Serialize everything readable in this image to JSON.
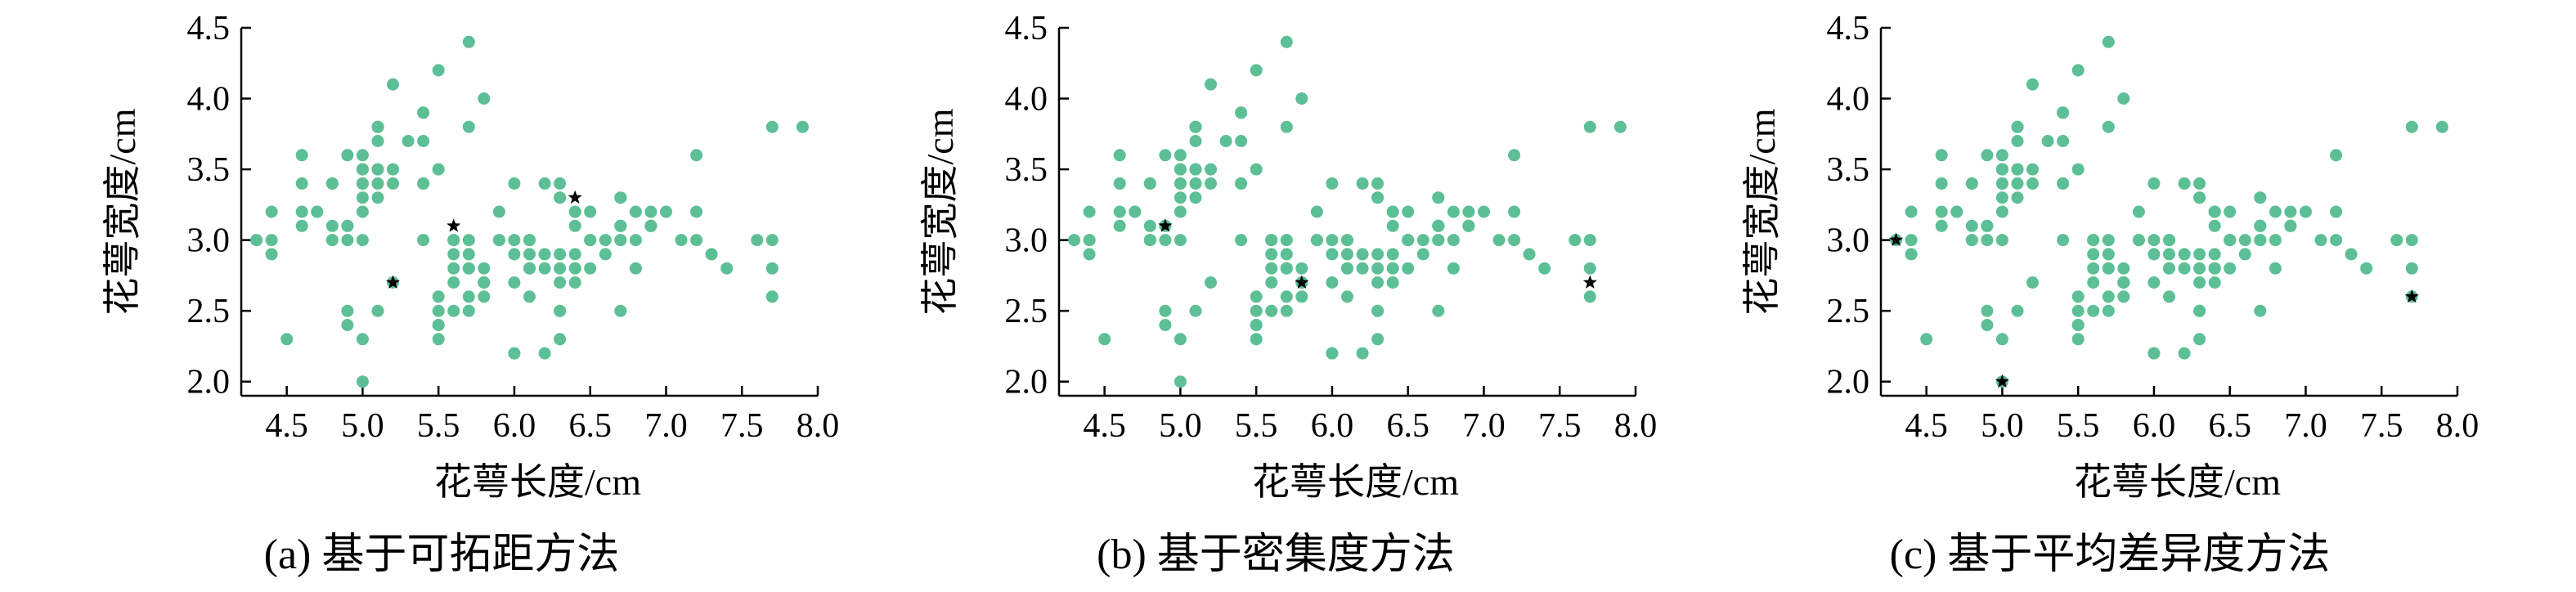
{
  "chart_data": [
    {
      "type": "scatter",
      "caption": "(a) 基于可拓距方法",
      "xlabel": "花萼长度/cm",
      "ylabel": "花萼宽度/cm",
      "xlim": [
        4.2,
        8.0
      ],
      "ylim": [
        1.9,
        4.5
      ],
      "xticks": [
        "4.5",
        "5.0",
        "5.5",
        "6.0",
        "6.5",
        "7.0",
        "7.5",
        "8.0"
      ],
      "yticks": [
        "2.0",
        "2.5",
        "3.0",
        "3.5",
        "4.0",
        "4.5"
      ],
      "grid": false,
      "point_color": "#5cbf96",
      "center_color": "#000000",
      "center_points": [
        [
          5.2,
          2.7
        ],
        [
          5.6,
          3.1
        ],
        [
          6.4,
          3.3
        ]
      ]
    },
    {
      "type": "scatter",
      "caption": "(b) 基于密集度方法",
      "xlabel": "花萼长度/cm",
      "ylabel": "花萼宽度/cm",
      "xlim": [
        4.2,
        8.0
      ],
      "ylim": [
        1.9,
        4.5
      ],
      "xticks": [
        "4.5",
        "5.0",
        "5.5",
        "6.0",
        "6.5",
        "7.0",
        "7.5",
        "8.0"
      ],
      "yticks": [
        "2.0",
        "2.5",
        "3.0",
        "3.5",
        "4.0",
        "4.5"
      ],
      "grid": false,
      "point_color": "#5cbf96",
      "center_color": "#000000",
      "center_points": [
        [
          4.9,
          3.1
        ],
        [
          5.8,
          2.7
        ],
        [
          7.7,
          2.7
        ]
      ]
    },
    {
      "type": "scatter",
      "caption": "(c) 基于平均差异度方法",
      "xlabel": "花萼长度/cm",
      "ylabel": "花萼宽度/cm",
      "xlim": [
        4.2,
        8.0
      ],
      "ylim": [
        1.9,
        4.5
      ],
      "xticks": [
        "4.5",
        "5.0",
        "5.5",
        "6.0",
        "6.5",
        "7.0",
        "7.5",
        "8.0"
      ],
      "yticks": [
        "2.0",
        "2.5",
        "3.0",
        "3.5",
        "4.0",
        "4.5"
      ],
      "grid": false,
      "point_color": "#5cbf96",
      "center_color": "#000000",
      "center_points": [
        [
          4.3,
          3.0
        ],
        [
          5.0,
          2.0
        ],
        [
          7.7,
          2.6
        ]
      ]
    }
  ],
  "points": [
    [
      5.1,
      3.5
    ],
    [
      4.9,
      3.0
    ],
    [
      4.7,
      3.2
    ],
    [
      4.6,
      3.1
    ],
    [
      5.0,
      3.6
    ],
    [
      5.4,
      3.9
    ],
    [
      4.6,
      3.4
    ],
    [
      5.0,
      3.4
    ],
    [
      4.4,
      2.9
    ],
    [
      4.9,
      3.1
    ],
    [
      5.4,
      3.7
    ],
    [
      4.8,
      3.4
    ],
    [
      4.8,
      3.0
    ],
    [
      4.3,
      3.0
    ],
    [
      5.8,
      4.0
    ],
    [
      5.7,
      4.4
    ],
    [
      5.4,
      3.9
    ],
    [
      5.1,
      3.5
    ],
    [
      5.7,
      3.8
    ],
    [
      5.1,
      3.8
    ],
    [
      5.4,
      3.4
    ],
    [
      5.1,
      3.7
    ],
    [
      4.6,
      3.6
    ],
    [
      5.1,
      3.3
    ],
    [
      4.8,
      3.4
    ],
    [
      5.0,
      3.0
    ],
    [
      5.0,
      3.4
    ],
    [
      5.2,
      3.5
    ],
    [
      5.2,
      3.4
    ],
    [
      4.7,
      3.2
    ],
    [
      4.8,
      3.1
    ],
    [
      5.4,
      3.4
    ],
    [
      5.2,
      4.1
    ],
    [
      5.5,
      4.2
    ],
    [
      4.9,
      3.1
    ],
    [
      5.0,
      3.2
    ],
    [
      5.5,
      3.5
    ],
    [
      4.9,
      3.6
    ],
    [
      4.4,
      3.0
    ],
    [
      5.1,
      3.4
    ],
    [
      5.0,
      3.5
    ],
    [
      4.5,
      2.3
    ],
    [
      4.4,
      3.2
    ],
    [
      5.0,
      3.5
    ],
    [
      5.1,
      3.8
    ],
    [
      4.8,
      3.0
    ],
    [
      5.1,
      3.8
    ],
    [
      4.6,
      3.2
    ],
    [
      5.3,
      3.7
    ],
    [
      5.0,
      3.3
    ],
    [
      7.0,
      3.2
    ],
    [
      6.4,
      3.2
    ],
    [
      6.9,
      3.1
    ],
    [
      5.5,
      2.3
    ],
    [
      6.5,
      2.8
    ],
    [
      5.7,
      2.8
    ],
    [
      6.3,
      3.3
    ],
    [
      4.9,
      2.4
    ],
    [
      6.6,
      2.9
    ],
    [
      5.2,
      2.7
    ],
    [
      5.0,
      2.0
    ],
    [
      5.9,
      3.0
    ],
    [
      6.0,
      2.2
    ],
    [
      6.1,
      2.9
    ],
    [
      5.6,
      2.9
    ],
    [
      6.7,
      3.1
    ],
    [
      5.6,
      3.0
    ],
    [
      5.8,
      2.7
    ],
    [
      6.2,
      2.2
    ],
    [
      5.6,
      2.5
    ],
    [
      5.9,
      3.2
    ],
    [
      6.1,
      2.8
    ],
    [
      6.3,
      2.5
    ],
    [
      6.1,
      2.8
    ],
    [
      6.4,
      2.9
    ],
    [
      6.6,
      3.0
    ],
    [
      6.8,
      2.8
    ],
    [
      6.7,
      3.0
    ],
    [
      6.0,
      2.9
    ],
    [
      5.7,
      2.6
    ],
    [
      5.5,
      2.4
    ],
    [
      5.5,
      2.4
    ],
    [
      5.8,
      2.7
    ],
    [
      6.0,
      2.7
    ],
    [
      5.4,
      3.0
    ],
    [
      6.0,
      3.4
    ],
    [
      6.7,
      3.1
    ],
    [
      6.3,
      2.3
    ],
    [
      5.6,
      3.0
    ],
    [
      5.5,
      2.5
    ],
    [
      5.5,
      2.6
    ],
    [
      6.1,
      3.0
    ],
    [
      5.8,
      2.6
    ],
    [
      5.0,
      2.3
    ],
    [
      5.6,
      2.7
    ],
    [
      5.7,
      3.0
    ],
    [
      5.7,
      2.9
    ],
    [
      6.2,
      2.9
    ],
    [
      5.1,
      2.5
    ],
    [
      5.7,
      2.8
    ],
    [
      6.3,
      3.3
    ],
    [
      5.8,
      2.7
    ],
    [
      7.1,
      3.0
    ],
    [
      6.3,
      2.9
    ],
    [
      6.5,
      3.0
    ],
    [
      7.6,
      3.0
    ],
    [
      4.9,
      2.5
    ],
    [
      7.3,
      2.9
    ],
    [
      6.7,
      2.5
    ],
    [
      7.2,
      3.6
    ],
    [
      6.5,
      3.2
    ],
    [
      6.4,
      2.7
    ],
    [
      6.8,
      3.0
    ],
    [
      5.7,
      2.5
    ],
    [
      5.8,
      2.8
    ],
    [
      6.4,
      3.2
    ],
    [
      6.5,
      3.0
    ],
    [
      7.7,
      3.8
    ],
    [
      7.7,
      2.6
    ],
    [
      6.0,
      2.2
    ],
    [
      6.9,
      3.2
    ],
    [
      5.6,
      2.8
    ],
    [
      7.7,
      2.8
    ],
    [
      6.3,
      2.7
    ],
    [
      6.7,
      3.3
    ],
    [
      7.2,
      3.2
    ],
    [
      6.2,
      2.8
    ],
    [
      6.1,
      3.0
    ],
    [
      6.4,
      2.8
    ],
    [
      7.2,
      3.0
    ],
    [
      7.4,
      2.8
    ],
    [
      7.9,
      3.8
    ],
    [
      6.4,
      2.8
    ],
    [
      6.3,
      2.8
    ],
    [
      6.1,
      2.6
    ],
    [
      7.7,
      3.0
    ],
    [
      6.3,
      3.4
    ],
    [
      6.4,
      3.1
    ],
    [
      6.0,
      3.0
    ],
    [
      6.9,
      3.1
    ],
    [
      6.7,
      3.1
    ],
    [
      6.9,
      3.1
    ],
    [
      5.8,
      2.7
    ],
    [
      6.8,
      3.2
    ],
    [
      6.7,
      3.3
    ],
    [
      6.7,
      3.0
    ],
    [
      6.3,
      2.5
    ],
    [
      6.5,
      3.0
    ],
    [
      6.2,
      3.4
    ],
    [
      5.9,
      3.0
    ]
  ]
}
